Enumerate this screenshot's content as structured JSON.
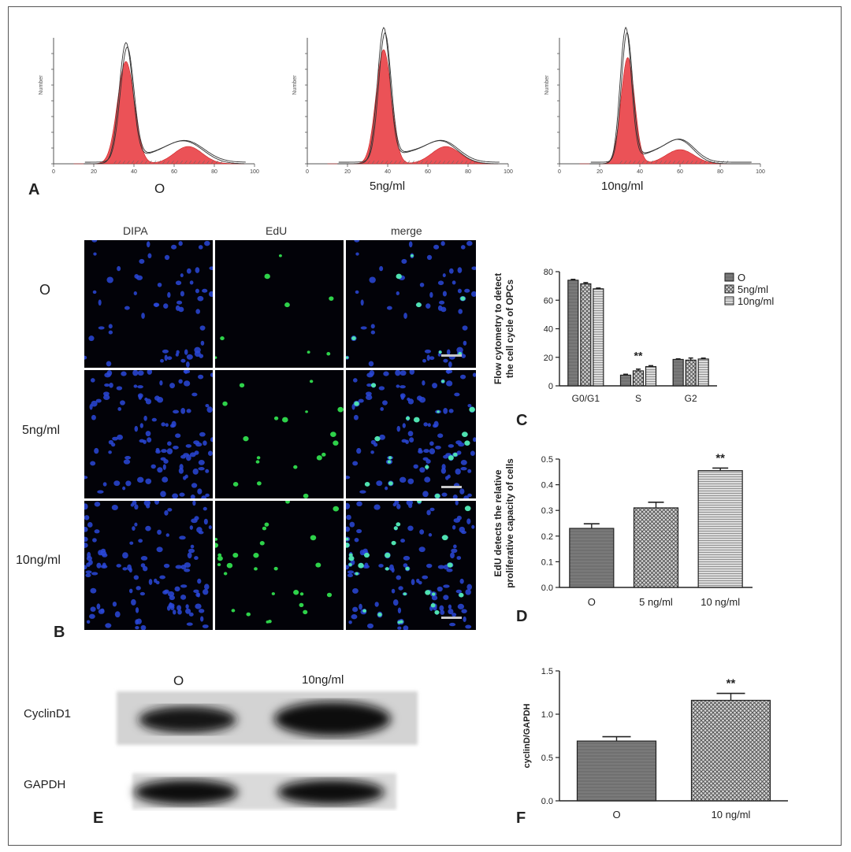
{
  "panelA": {
    "letter": "A",
    "histograms": [
      {
        "label": "O",
        "x_ticks": [
          "0",
          "20",
          "40",
          "60",
          "80",
          "100"
        ],
        "y_axis": "Number"
      },
      {
        "label": "5ng/ml",
        "x_ticks": [
          "0",
          "20",
          "40",
          "60",
          "80",
          "100"
        ],
        "y_axis": "Number"
      },
      {
        "label": "10ng/ml",
        "x_ticks": [
          "0",
          "20",
          "40",
          "60",
          "80",
          "100"
        ],
        "y_axis": "Number"
      }
    ]
  },
  "panelB": {
    "letter": "B",
    "columns": [
      "DIPA",
      "EdU",
      "merge"
    ],
    "rows": [
      "O",
      "5ng/ml",
      "10ng/ml"
    ]
  },
  "panelE": {
    "letter": "E",
    "lane_labels": [
      "O",
      "10ng/ml"
    ],
    "band_labels": [
      "CyclinD1",
      "GAPDH"
    ]
  },
  "colors": {
    "accent": "#e8343a",
    "bar_dark": "#7a7a7a",
    "bar_mid": "#9a9a9a",
    "bar_light": "#c4c4c4",
    "dapi": "#2a48d8",
    "edu": "#2ed24a"
  },
  "chart_data": [
    {
      "id": "C",
      "letter": "C",
      "type": "bar",
      "ylabel": "Flow cytometry to detect the cell cycle of OPCs",
      "ylim": [
        0,
        80
      ],
      "y_ticks": [
        "0",
        "20",
        "40",
        "60",
        "80"
      ],
      "categories": [
        "G0/G1",
        "S",
        "G2"
      ],
      "series": [
        {
          "name": "O",
          "values": [
            74,
            7.5,
            18.5
          ],
          "errors": [
            0.6,
            0.6,
            0.4
          ]
        },
        {
          "name": "5ng/ml",
          "values": [
            71.5,
            10.5,
            18
          ],
          "errors": [
            0.8,
            1.2,
            1.5
          ]
        },
        {
          "name": "10ng/ml",
          "values": [
            68,
            13.5,
            18.8
          ],
          "errors": [
            0.5,
            0.6,
            0.6
          ]
        }
      ],
      "annotations": [
        {
          "category": "S",
          "text": "**"
        }
      ],
      "legend": "top-right"
    },
    {
      "id": "D",
      "letter": "D",
      "type": "bar",
      "ylabel": "EdU detects the relative proliferative capacity of cells",
      "ylim": [
        0,
        0.5
      ],
      "y_ticks": [
        "0.0",
        "0.1",
        "0.2",
        "0.3",
        "0.4",
        "0.5"
      ],
      "categories": [
        "O",
        "5 ng/ml",
        "10 ng/ml"
      ],
      "values": [
        0.23,
        0.31,
        0.455
      ],
      "errors": [
        0.018,
        0.022,
        0.01
      ],
      "annotations": [
        {
          "category": "10 ng/ml",
          "text": "**"
        }
      ]
    },
    {
      "id": "F",
      "letter": "F",
      "type": "bar",
      "ylabel": "cyclinD/GAPDH",
      "ylim": [
        0,
        1.5
      ],
      "y_ticks": [
        "0.0",
        "0.5",
        "1.0",
        "1.5"
      ],
      "categories": [
        "O",
        "10 ng/ml"
      ],
      "values": [
        0.69,
        1.16
      ],
      "errors": [
        0.05,
        0.08
      ],
      "annotations": [
        {
          "category": "10 ng/ml",
          "text": "**"
        }
      ]
    }
  ]
}
